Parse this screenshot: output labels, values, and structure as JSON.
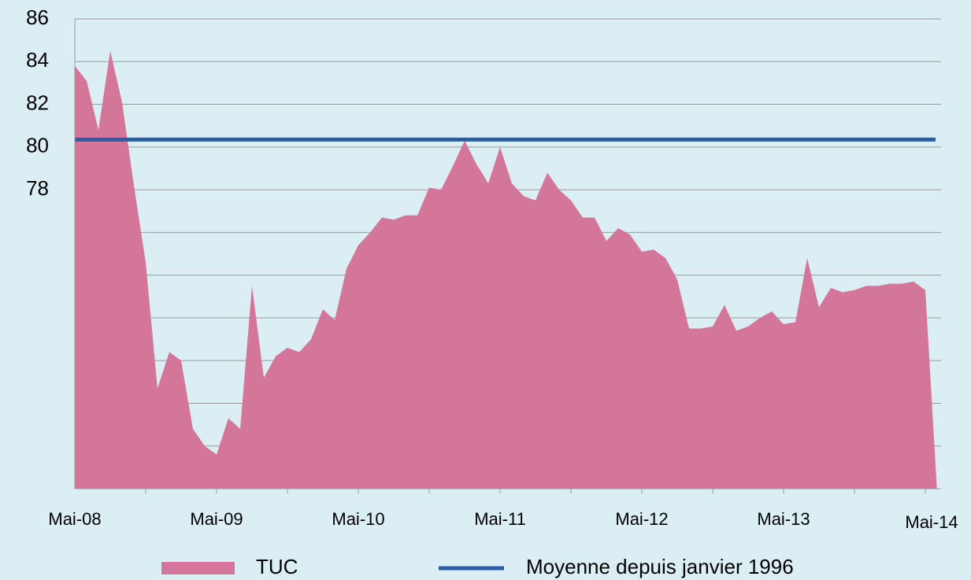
{
  "chart_data": {
    "type": "area",
    "categories": [
      "Mai-08",
      null,
      null,
      null,
      null,
      null,
      null,
      null,
      null,
      null,
      null,
      null,
      "Mai-09",
      null,
      null,
      null,
      null,
      null,
      null,
      null,
      null,
      null,
      null,
      null,
      "Mai-10",
      null,
      null,
      null,
      null,
      null,
      null,
      null,
      null,
      null,
      null,
      null,
      "Mai-11",
      null,
      null,
      null,
      null,
      null,
      null,
      null,
      null,
      null,
      null,
      null,
      "Mai-12",
      null,
      null,
      null,
      null,
      null,
      null,
      null,
      null,
      null,
      null,
      null,
      "Mai-13",
      null,
      null,
      null,
      null,
      null,
      null,
      null,
      null,
      null,
      null,
      null,
      "Mai-14",
      null
    ],
    "series": [
      {
        "name": "TUC",
        "color": "#d4769a",
        "values": [
          83.8,
          83.1,
          80.8,
          84.5,
          82.1,
          78.2,
          74.6,
          68.7,
          70.4,
          70.0,
          66.8,
          66.0,
          65.6,
          67.3,
          66.8,
          73.5,
          69.2,
          70.2,
          70.6,
          70.4,
          71.0,
          72.4,
          71.9,
          74.3,
          75.4,
          76.0,
          76.7,
          76.6,
          76.8,
          76.8,
          78.1,
          78.0,
          79.1,
          80.3,
          79.2,
          78.3,
          80.0,
          78.3,
          77.7,
          77.5,
          78.8,
          78.0,
          77.5,
          76.7,
          76.7,
          75.6,
          76.2,
          75.9,
          75.1,
          75.2,
          74.8,
          73.8,
          71.5,
          71.5,
          71.6,
          72.6,
          71.4,
          71.6,
          72.0,
          72.3,
          71.7,
          71.8,
          74.8,
          72.5,
          73.4,
          73.2,
          73.3,
          73.5,
          73.5,
          73.6,
          73.6,
          73.7,
          73.3,
          63.8
        ]
      },
      {
        "name": "Moyenne depuis janvier 1996",
        "color": "#2a5ca8",
        "value": 80.35
      }
    ],
    "ylim": [
      64,
      86
    ],
    "yticks": [
      78,
      80,
      82,
      84,
      86
    ],
    "ygrid": [
      66,
      68,
      70,
      72,
      74,
      76
    ],
    "grid": true
  }
}
